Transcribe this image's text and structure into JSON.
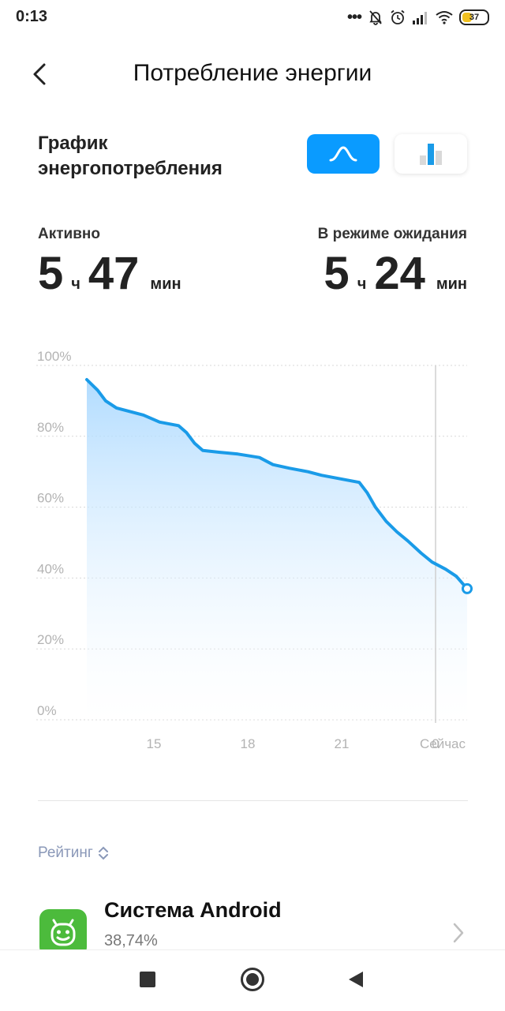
{
  "status_bar": {
    "time": "0:13",
    "battery": "37"
  },
  "header": {
    "title": "Потребление энергии"
  },
  "graph_section": {
    "title_line1": "График",
    "title_line2": "энергопотребления"
  },
  "stats": {
    "active": {
      "label": "Активно",
      "hours": "5",
      "hours_unit": "ч",
      "minutes": "47",
      "minutes_unit": "мин"
    },
    "standby": {
      "label": "В режиме ожидания",
      "hours": "5",
      "hours_unit": "ч",
      "minutes": "24",
      "minutes_unit": "мин"
    }
  },
  "chart_data": {
    "type": "area",
    "y_ticks": [
      "100%",
      "80%",
      "60%",
      "40%",
      "20%",
      "0%"
    ],
    "x_ticks": [
      "15",
      "18",
      "21",
      "0",
      "Сейчас"
    ],
    "ylim": [
      0,
      100
    ],
    "grid": true,
    "accent_color": "#1a9be8",
    "points": [
      [
        12.9,
        96
      ],
      [
        13.3,
        93
      ],
      [
        13.6,
        90
      ],
      [
        14.0,
        88
      ],
      [
        14.5,
        87
      ],
      [
        15.0,
        86
      ],
      [
        15.6,
        84
      ],
      [
        16.3,
        83
      ],
      [
        16.6,
        81
      ],
      [
        16.9,
        78
      ],
      [
        17.2,
        76
      ],
      [
        17.8,
        75.5
      ],
      [
        18.5,
        75
      ],
      [
        19.3,
        74
      ],
      [
        19.8,
        72
      ],
      [
        20.4,
        71
      ],
      [
        21.1,
        70
      ],
      [
        21.6,
        69
      ],
      [
        22.3,
        68
      ],
      [
        23.0,
        67
      ],
      [
        23.3,
        64
      ],
      [
        23.6,
        60
      ],
      [
        24.0,
        56
      ],
      [
        24.4,
        53
      ],
      [
        24.8,
        50.5
      ],
      [
        25.3,
        47
      ],
      [
        25.7,
        44.5
      ],
      [
        26.2,
        42.5
      ],
      [
        26.6,
        40.5
      ],
      [
        27.0,
        37
      ]
    ],
    "current_marker": {
      "x": 27.0,
      "y": 37
    },
    "now_line_x": 24.5
  },
  "rating": {
    "label": "Рейтинг"
  },
  "apps": [
    {
      "name": "Система Android",
      "percent": "38,74%"
    }
  ]
}
